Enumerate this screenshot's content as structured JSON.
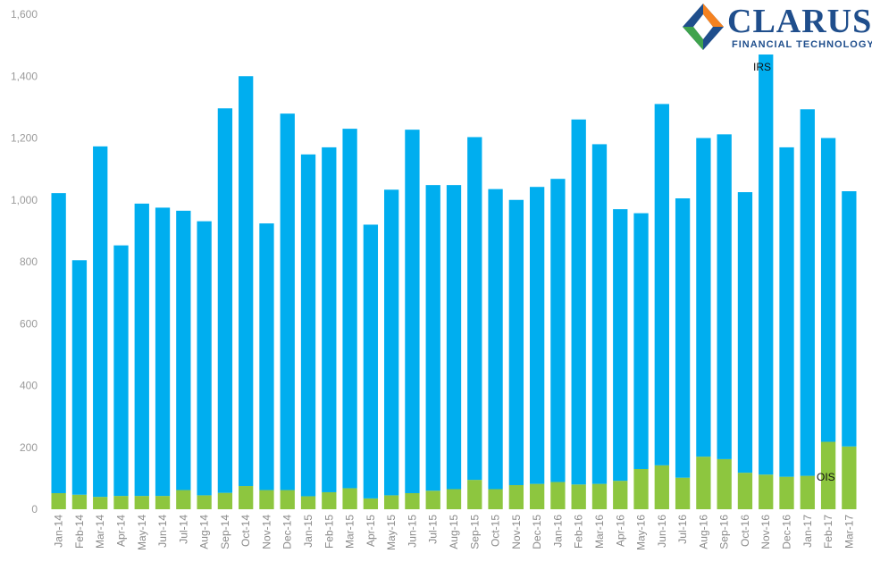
{
  "colors": {
    "irs": "#00aeef",
    "ois": "#8dc63f",
    "logo_blue": "#1f4e8c",
    "logo_orange": "#f58220",
    "logo_green": "#3fa34d"
  },
  "logo": {
    "name": "CLARUS",
    "tagline": "FINANCIAL TECHNOLOGY"
  },
  "chart_data": {
    "type": "bar",
    "stacked": true,
    "title": "",
    "xlabel": "",
    "ylabel": "",
    "ylim": [
      0,
      1600
    ],
    "yticks": [
      "0",
      "200",
      "400",
      "600",
      "800",
      "1,000",
      "1,200",
      "1,400",
      "1,600"
    ],
    "grid": false,
    "categories": [
      "Jan-14",
      "Feb-14",
      "Mar-14",
      "Apr-14",
      "May-14",
      "Jun-14",
      "Jul-14",
      "Aug-14",
      "Sep-14",
      "Oct-14",
      "Nov-14",
      "Dec-14",
      "Jan-15",
      "Feb-15",
      "Mar-15",
      "Apr-15",
      "May-15",
      "Jun-15",
      "Jul-15",
      "Aug-15",
      "Sep-15",
      "Oct-15",
      "Nov-15",
      "Dec-15",
      "Jan-16",
      "Feb-16",
      "Mar-16",
      "Apr-16",
      "May-16",
      "Jun-16",
      "Jul-16",
      "Aug-16",
      "Sep-16",
      "Oct-16",
      "Nov-16",
      "Dec-16",
      "Jan-17",
      "Feb-17",
      "Mar-17"
    ],
    "series": [
      {
        "name": "OIS",
        "values": [
          52,
          47,
          40,
          43,
          43,
          43,
          62,
          45,
          53,
          75,
          62,
          62,
          42,
          55,
          68,
          35,
          45,
          52,
          60,
          65,
          95,
          65,
          78,
          82,
          88,
          80,
          82,
          92,
          130,
          142,
          102,
          170,
          162,
          118,
          112,
          105,
          108,
          218,
          203
        ]
      },
      {
        "name": "IRS",
        "values": [
          970,
          758,
          1133,
          810,
          945,
          932,
          903,
          886,
          1243,
          1325,
          862,
          1217,
          1105,
          1115,
          1162,
          885,
          988,
          1175,
          988,
          983,
          1108,
          970,
          922,
          960,
          980,
          1180,
          1098,
          878,
          827,
          1168,
          903,
          1030,
          1050,
          907,
          1358,
          1065,
          1185,
          982,
          825
        ]
      }
    ]
  }
}
